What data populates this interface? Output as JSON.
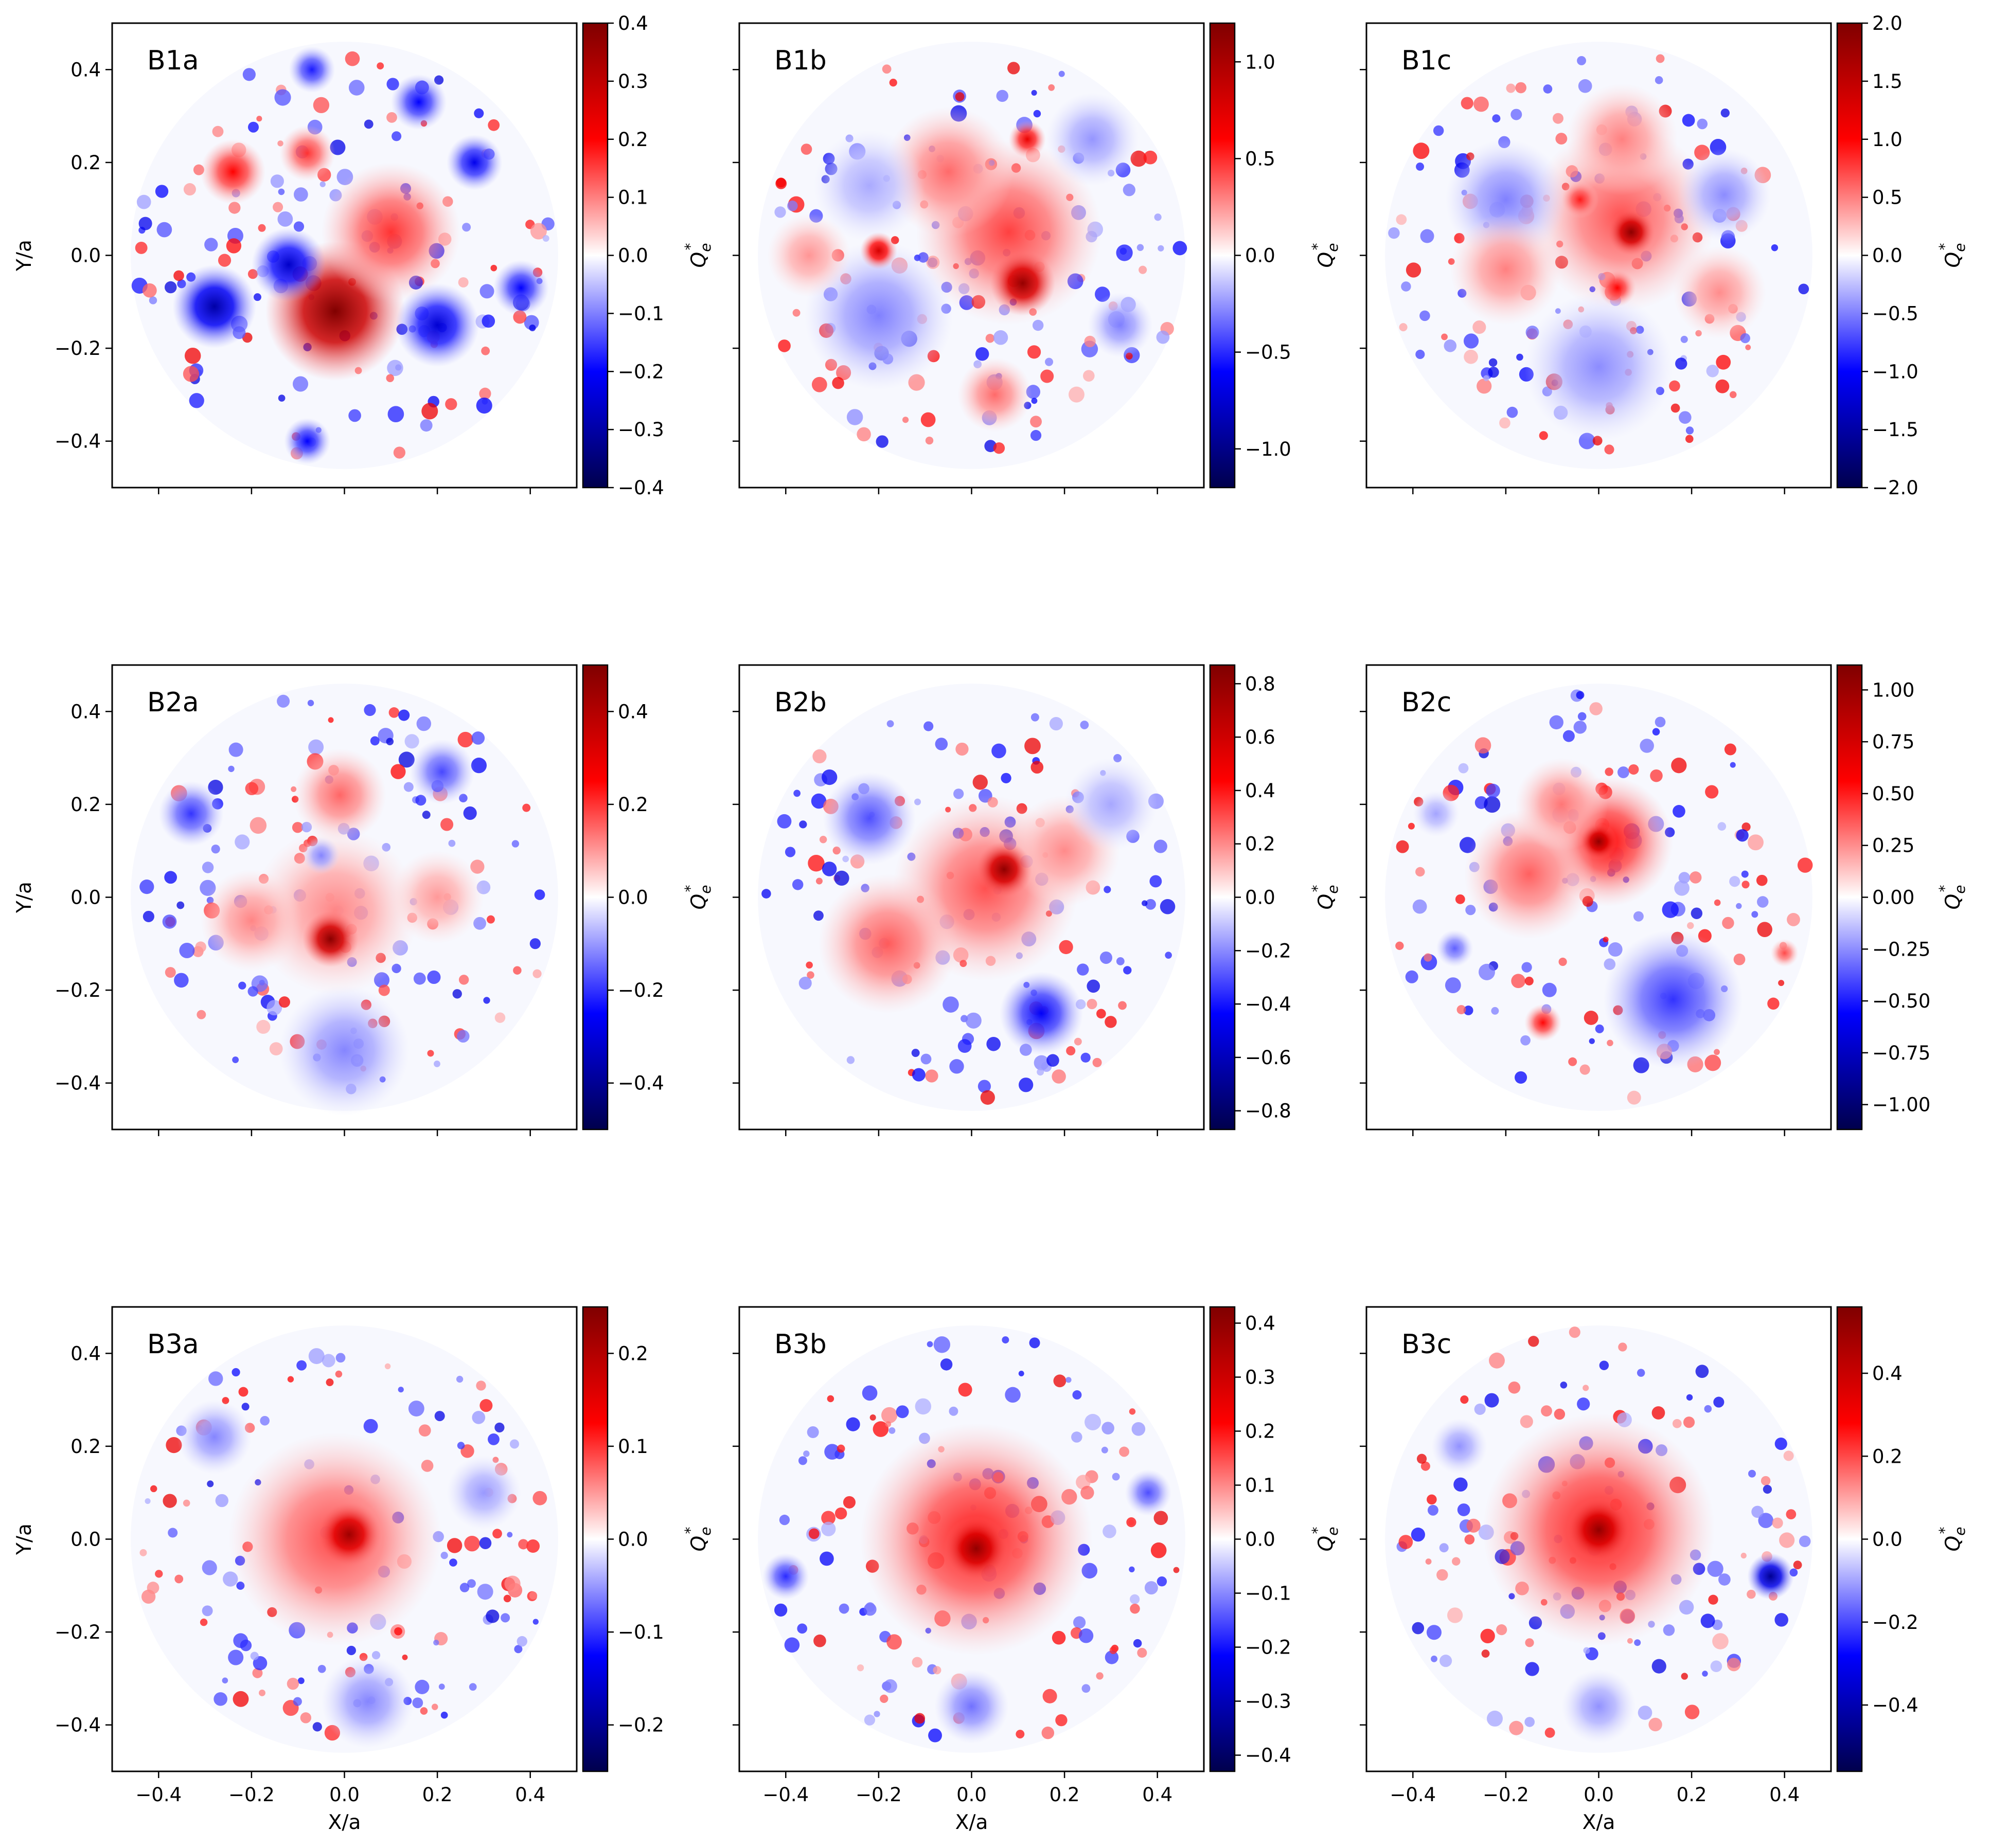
{
  "chart_data": {
    "type": "heatmap",
    "description_field": "Q_e* field maps in a circular domain",
    "colormap": "seismic",
    "axes": {
      "xlabel": "X/a",
      "ylabel": "Y/a",
      "xlim": [
        -0.5,
        0.5
      ],
      "ylim": [
        -0.5,
        0.5
      ],
      "xticks": [
        -0.4,
        -0.2,
        0.0,
        0.2,
        0.4
      ],
      "yticks": [
        -0.4,
        -0.2,
        0.0,
        0.2,
        0.4
      ],
      "xtick_labels": [
        "−0.4",
        "−0.2",
        "0.0",
        "0.2",
        "0.4"
      ],
      "ytick_labels": [
        "−0.4",
        "−0.2",
        "0.0",
        "0.2",
        "0.4"
      ]
    },
    "colorbar_label": "Q",
    "colorbar_label_sub": "e",
    "colorbar_label_sup": "*",
    "panels": [
      {
        "title": "B1a",
        "vmin": -0.4,
        "vmax": 0.4,
        "ticks": [
          -0.4,
          -0.3,
          -0.2,
          -0.1,
          0.0,
          0.1,
          0.2,
          0.3,
          0.4
        ],
        "tick_labels": [
          "−0.4",
          "−0.3",
          "−0.2",
          "−0.1",
          "0.0",
          "0.1",
          "0.2",
          "0.3",
          "0.4"
        ],
        "features": [
          {
            "x": -0.02,
            "y": -0.12,
            "q": 0.4,
            "r": 0.15
          },
          {
            "x": 0.1,
            "y": 0.05,
            "q": 0.16,
            "r": 0.15
          },
          {
            "x": -0.24,
            "y": 0.18,
            "q": 0.2,
            "r": 0.07
          },
          {
            "x": -0.08,
            "y": 0.22,
            "q": 0.16,
            "r": 0.06
          },
          {
            "x": -0.28,
            "y": -0.11,
            "q": -0.3,
            "r": 0.09
          },
          {
            "x": -0.12,
            "y": -0.02,
            "q": -0.26,
            "r": 0.08
          },
          {
            "x": 0.2,
            "y": -0.15,
            "q": -0.25,
            "r": 0.09
          },
          {
            "x": 0.28,
            "y": 0.2,
            "q": -0.22,
            "r": 0.06
          },
          {
            "x": 0.16,
            "y": 0.33,
            "q": -0.2,
            "r": 0.06
          },
          {
            "x": 0.38,
            "y": -0.07,
            "q": -0.2,
            "r": 0.06
          },
          {
            "x": -0.07,
            "y": 0.4,
            "q": -0.18,
            "r": 0.05
          },
          {
            "x": -0.08,
            "y": -0.4,
            "q": -0.2,
            "r": 0.05
          }
        ]
      },
      {
        "title": "B1b",
        "vmin": -1.2,
        "vmax": 1.2,
        "ticks": [
          -1.0,
          -0.5,
          0.0,
          0.5,
          1.0
        ],
        "tick_labels": [
          "−1.0",
          "−0.5",
          "0.0",
          "0.5",
          "1.0"
        ],
        "features": [
          {
            "x": 0.11,
            "y": -0.06,
            "q": 1.1,
            "r": 0.07
          },
          {
            "x": 0.08,
            "y": 0.05,
            "q": 0.45,
            "r": 0.2
          },
          {
            "x": -0.05,
            "y": 0.18,
            "q": 0.35,
            "r": 0.14
          },
          {
            "x": -0.2,
            "y": 0.01,
            "q": 0.8,
            "r": 0.04
          },
          {
            "x": 0.12,
            "y": 0.25,
            "q": 0.7,
            "r": 0.04
          },
          {
            "x": 0.05,
            "y": -0.3,
            "q": 0.35,
            "r": 0.08
          },
          {
            "x": -0.35,
            "y": 0.0,
            "q": 0.25,
            "r": 0.09
          },
          {
            "x": -0.2,
            "y": -0.13,
            "q": -0.3,
            "r": 0.16
          },
          {
            "x": -0.22,
            "y": 0.15,
            "q": -0.2,
            "r": 0.12
          },
          {
            "x": 0.26,
            "y": 0.25,
            "q": -0.25,
            "r": 0.1
          },
          {
            "x": 0.32,
            "y": -0.15,
            "q": -0.3,
            "r": 0.07
          }
        ]
      },
      {
        "title": "B1c",
        "vmin": -2.0,
        "vmax": 2.0,
        "ticks": [
          -2.0,
          -1.5,
          -1.0,
          -0.5,
          0.0,
          0.5,
          1.0,
          1.5,
          2.0
        ],
        "tick_labels": [
          "−2.0",
          "−1.5",
          "−1.0",
          "−0.5",
          "0.0",
          "0.5",
          "1.0",
          "1.5",
          "2.0"
        ],
        "features": [
          {
            "x": 0.07,
            "y": 0.05,
            "q": 1.9,
            "r": 0.05
          },
          {
            "x": 0.05,
            "y": 0.08,
            "q": 0.7,
            "r": 0.2
          },
          {
            "x": 0.05,
            "y": 0.25,
            "q": 0.5,
            "r": 0.12
          },
          {
            "x": -0.2,
            "y": -0.03,
            "q": 0.5,
            "r": 0.12
          },
          {
            "x": 0.26,
            "y": -0.08,
            "q": 0.45,
            "r": 0.1
          },
          {
            "x": -0.04,
            "y": 0.12,
            "q": 0.9,
            "r": 0.04
          },
          {
            "x": 0.04,
            "y": -0.07,
            "q": 1.0,
            "r": 0.04
          },
          {
            "x": -0.2,
            "y": 0.12,
            "q": -0.5,
            "r": 0.13
          },
          {
            "x": 0.27,
            "y": 0.13,
            "q": -0.45,
            "r": 0.1
          },
          {
            "x": 0.0,
            "y": -0.24,
            "q": -0.45,
            "r": 0.16
          }
        ]
      },
      {
        "title": "B2a",
        "vmin": -0.5,
        "vmax": 0.5,
        "ticks": [
          -0.4,
          -0.2,
          0.0,
          0.2,
          0.4
        ],
        "tick_labels": [
          "−0.4",
          "−0.2",
          "0.0",
          "0.2",
          "0.4"
        ],
        "features": [
          {
            "x": -0.03,
            "y": -0.09,
            "q": 0.48,
            "r": 0.06
          },
          {
            "x": -0.02,
            "y": -0.03,
            "q": 0.12,
            "r": 0.18
          },
          {
            "x": -0.01,
            "y": 0.22,
            "q": 0.15,
            "r": 0.1
          },
          {
            "x": -0.2,
            "y": -0.05,
            "q": 0.12,
            "r": 0.11
          },
          {
            "x": 0.2,
            "y": 0.0,
            "q": 0.1,
            "r": 0.1
          },
          {
            "x": -0.33,
            "y": 0.18,
            "q": -0.2,
            "r": 0.07
          },
          {
            "x": 0.21,
            "y": 0.27,
            "q": -0.18,
            "r": 0.07
          },
          {
            "x": -0.05,
            "y": 0.09,
            "q": -0.12,
            "r": 0.04
          },
          {
            "x": 0.0,
            "y": -0.33,
            "q": -0.12,
            "r": 0.14
          }
        ]
      },
      {
        "title": "B2b",
        "vmin": -0.87,
        "vmax": 0.87,
        "ticks": [
          -0.8,
          -0.6,
          -0.4,
          -0.2,
          0.0,
          0.2,
          0.4,
          0.6,
          0.8
        ],
        "tick_labels": [
          "−0.8",
          "−0.6",
          "−0.4",
          "−0.2",
          "0.0",
          "0.2",
          "0.4",
          "0.6",
          "0.8"
        ],
        "features": [
          {
            "x": 0.07,
            "y": 0.06,
            "q": 0.82,
            "r": 0.06
          },
          {
            "x": 0.03,
            "y": 0.02,
            "q": 0.3,
            "r": 0.2
          },
          {
            "x": -0.18,
            "y": -0.1,
            "q": 0.28,
            "r": 0.15
          },
          {
            "x": 0.2,
            "y": 0.1,
            "q": 0.2,
            "r": 0.12
          },
          {
            "x": -0.22,
            "y": 0.17,
            "q": -0.3,
            "r": 0.1
          },
          {
            "x": 0.15,
            "y": -0.25,
            "q": -0.45,
            "r": 0.09
          },
          {
            "x": 0.3,
            "y": 0.2,
            "q": -0.15,
            "r": 0.1
          }
        ]
      },
      {
        "title": "B2c",
        "vmin": -1.12,
        "vmax": 1.12,
        "ticks": [
          -1.0,
          -0.75,
          -0.5,
          -0.25,
          0.0,
          0.25,
          0.5,
          0.75,
          1.0
        ],
        "tick_labels": [
          "−1.00",
          "−0.75",
          "−0.50",
          "−0.25",
          "0.00",
          "0.25",
          "0.50",
          "0.75",
          "1.00"
        ],
        "features": [
          {
            "x": 0.0,
            "y": 0.12,
            "q": 1.05,
            "r": 0.04
          },
          {
            "x": 0.02,
            "y": 0.12,
            "q": 0.55,
            "r": 0.14
          },
          {
            "x": -0.15,
            "y": 0.05,
            "q": 0.35,
            "r": 0.14
          },
          {
            "x": -0.08,
            "y": 0.2,
            "q": 0.3,
            "r": 0.1
          },
          {
            "x": -0.12,
            "y": -0.27,
            "q": 0.55,
            "r": 0.04
          },
          {
            "x": 0.4,
            "y": -0.12,
            "q": 0.4,
            "r": 0.03
          },
          {
            "x": 0.16,
            "y": -0.22,
            "q": -0.45,
            "r": 0.15
          },
          {
            "x": -0.31,
            "y": -0.11,
            "q": -0.35,
            "r": 0.04
          },
          {
            "x": -0.35,
            "y": 0.18,
            "q": -0.2,
            "r": 0.05
          }
        ]
      },
      {
        "title": "B3a",
        "vmin": -0.25,
        "vmax": 0.25,
        "ticks": [
          -0.2,
          -0.1,
          0.0,
          0.1,
          0.2
        ],
        "tick_labels": [
          "−0.2",
          "−0.1",
          "0.0",
          "0.1",
          "0.2"
        ],
        "features": [
          {
            "x": 0.01,
            "y": 0.01,
            "q": 0.22,
            "r": 0.07
          },
          {
            "x": -0.02,
            "y": 0.0,
            "q": 0.09,
            "r": 0.23
          },
          {
            "x": -0.28,
            "y": 0.22,
            "q": -0.06,
            "r": 0.08
          },
          {
            "x": 0.3,
            "y": 0.1,
            "q": -0.05,
            "r": 0.08
          },
          {
            "x": 0.05,
            "y": -0.35,
            "q": -0.06,
            "r": 0.1
          }
        ]
      },
      {
        "title": "B3b",
        "vmin": -0.43,
        "vmax": 0.43,
        "ticks": [
          -0.4,
          -0.3,
          -0.2,
          -0.1,
          0.0,
          0.1,
          0.2,
          0.3,
          0.4
        ],
        "tick_labels": [
          "−0.4",
          "−0.3",
          "−0.2",
          "−0.1",
          "0.0",
          "0.1",
          "0.2",
          "0.3",
          "0.4"
        ],
        "features": [
          {
            "x": 0.01,
            "y": -0.02,
            "q": 0.4,
            "r": 0.07
          },
          {
            "x": 0.01,
            "y": 0.0,
            "q": 0.2,
            "r": 0.25
          },
          {
            "x": -0.4,
            "y": -0.08,
            "q": -0.18,
            "r": 0.05
          },
          {
            "x": 0.38,
            "y": 0.1,
            "q": -0.15,
            "r": 0.05
          },
          {
            "x": 0.0,
            "y": -0.36,
            "q": -0.12,
            "r": 0.08
          }
        ]
      },
      {
        "title": "B3c",
        "vmin": -0.56,
        "vmax": 0.56,
        "ticks": [
          -0.4,
          -0.2,
          0.0,
          0.2,
          0.4
        ],
        "tick_labels": [
          "−0.4",
          "−0.2",
          "0.0",
          "0.2",
          "0.4"
        ],
        "features": [
          {
            "x": 0.0,
            "y": 0.02,
            "q": 0.52,
            "r": 0.07
          },
          {
            "x": 0.0,
            "y": 0.02,
            "q": 0.26,
            "r": 0.25
          },
          {
            "x": 0.37,
            "y": -0.08,
            "q": -0.45,
            "r": 0.05
          },
          {
            "x": -0.3,
            "y": 0.2,
            "q": -0.12,
            "r": 0.06
          },
          {
            "x": 0.0,
            "y": -0.36,
            "q": -0.12,
            "r": 0.08
          }
        ]
      }
    ]
  }
}
